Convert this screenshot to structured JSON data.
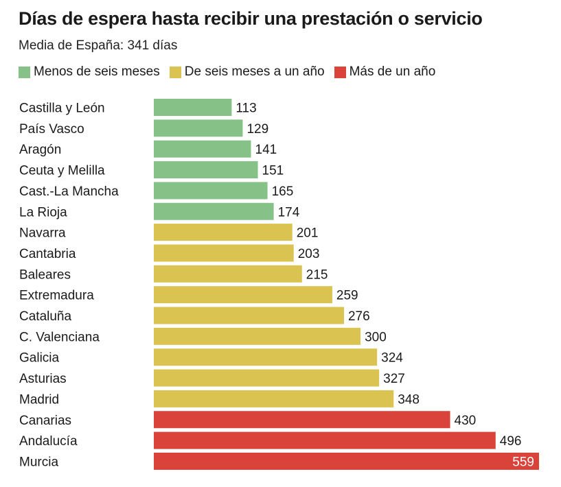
{
  "chart_data": {
    "type": "bar",
    "orientation": "horizontal",
    "title": "Días de espera hasta recibir una prestación o servicio",
    "subtitle": "Media de España: 341 días",
    "legend": [
      {
        "label": "Menos de seis meses",
        "color": "#86c287"
      },
      {
        "label": "De seis meses a un año",
        "color": "#dbc351"
      },
      {
        "label": "Más de un año",
        "color": "#d9433a"
      }
    ],
    "categories": [
      "Castilla y León",
      "País Vasco",
      "Aragón",
      "Ceuta y Melilla",
      "Cast.-La Mancha",
      "La Rioja",
      "Navarra",
      "Cantabria",
      "Baleares",
      "Extremadura",
      "Cataluña",
      "C. Valenciana",
      "Galicia",
      "Asturias",
      "Madrid",
      "Canarias",
      "Andalucía",
      "Murcia"
    ],
    "values": [
      113,
      129,
      141,
      151,
      165,
      174,
      201,
      203,
      215,
      259,
      276,
      300,
      324,
      327,
      348,
      430,
      496,
      559
    ],
    "group": [
      0,
      0,
      0,
      0,
      0,
      0,
      1,
      1,
      1,
      1,
      1,
      1,
      1,
      1,
      1,
      2,
      2,
      2
    ],
    "xlim": [
      0,
      559
    ],
    "xlabel": "",
    "ylabel": ""
  }
}
